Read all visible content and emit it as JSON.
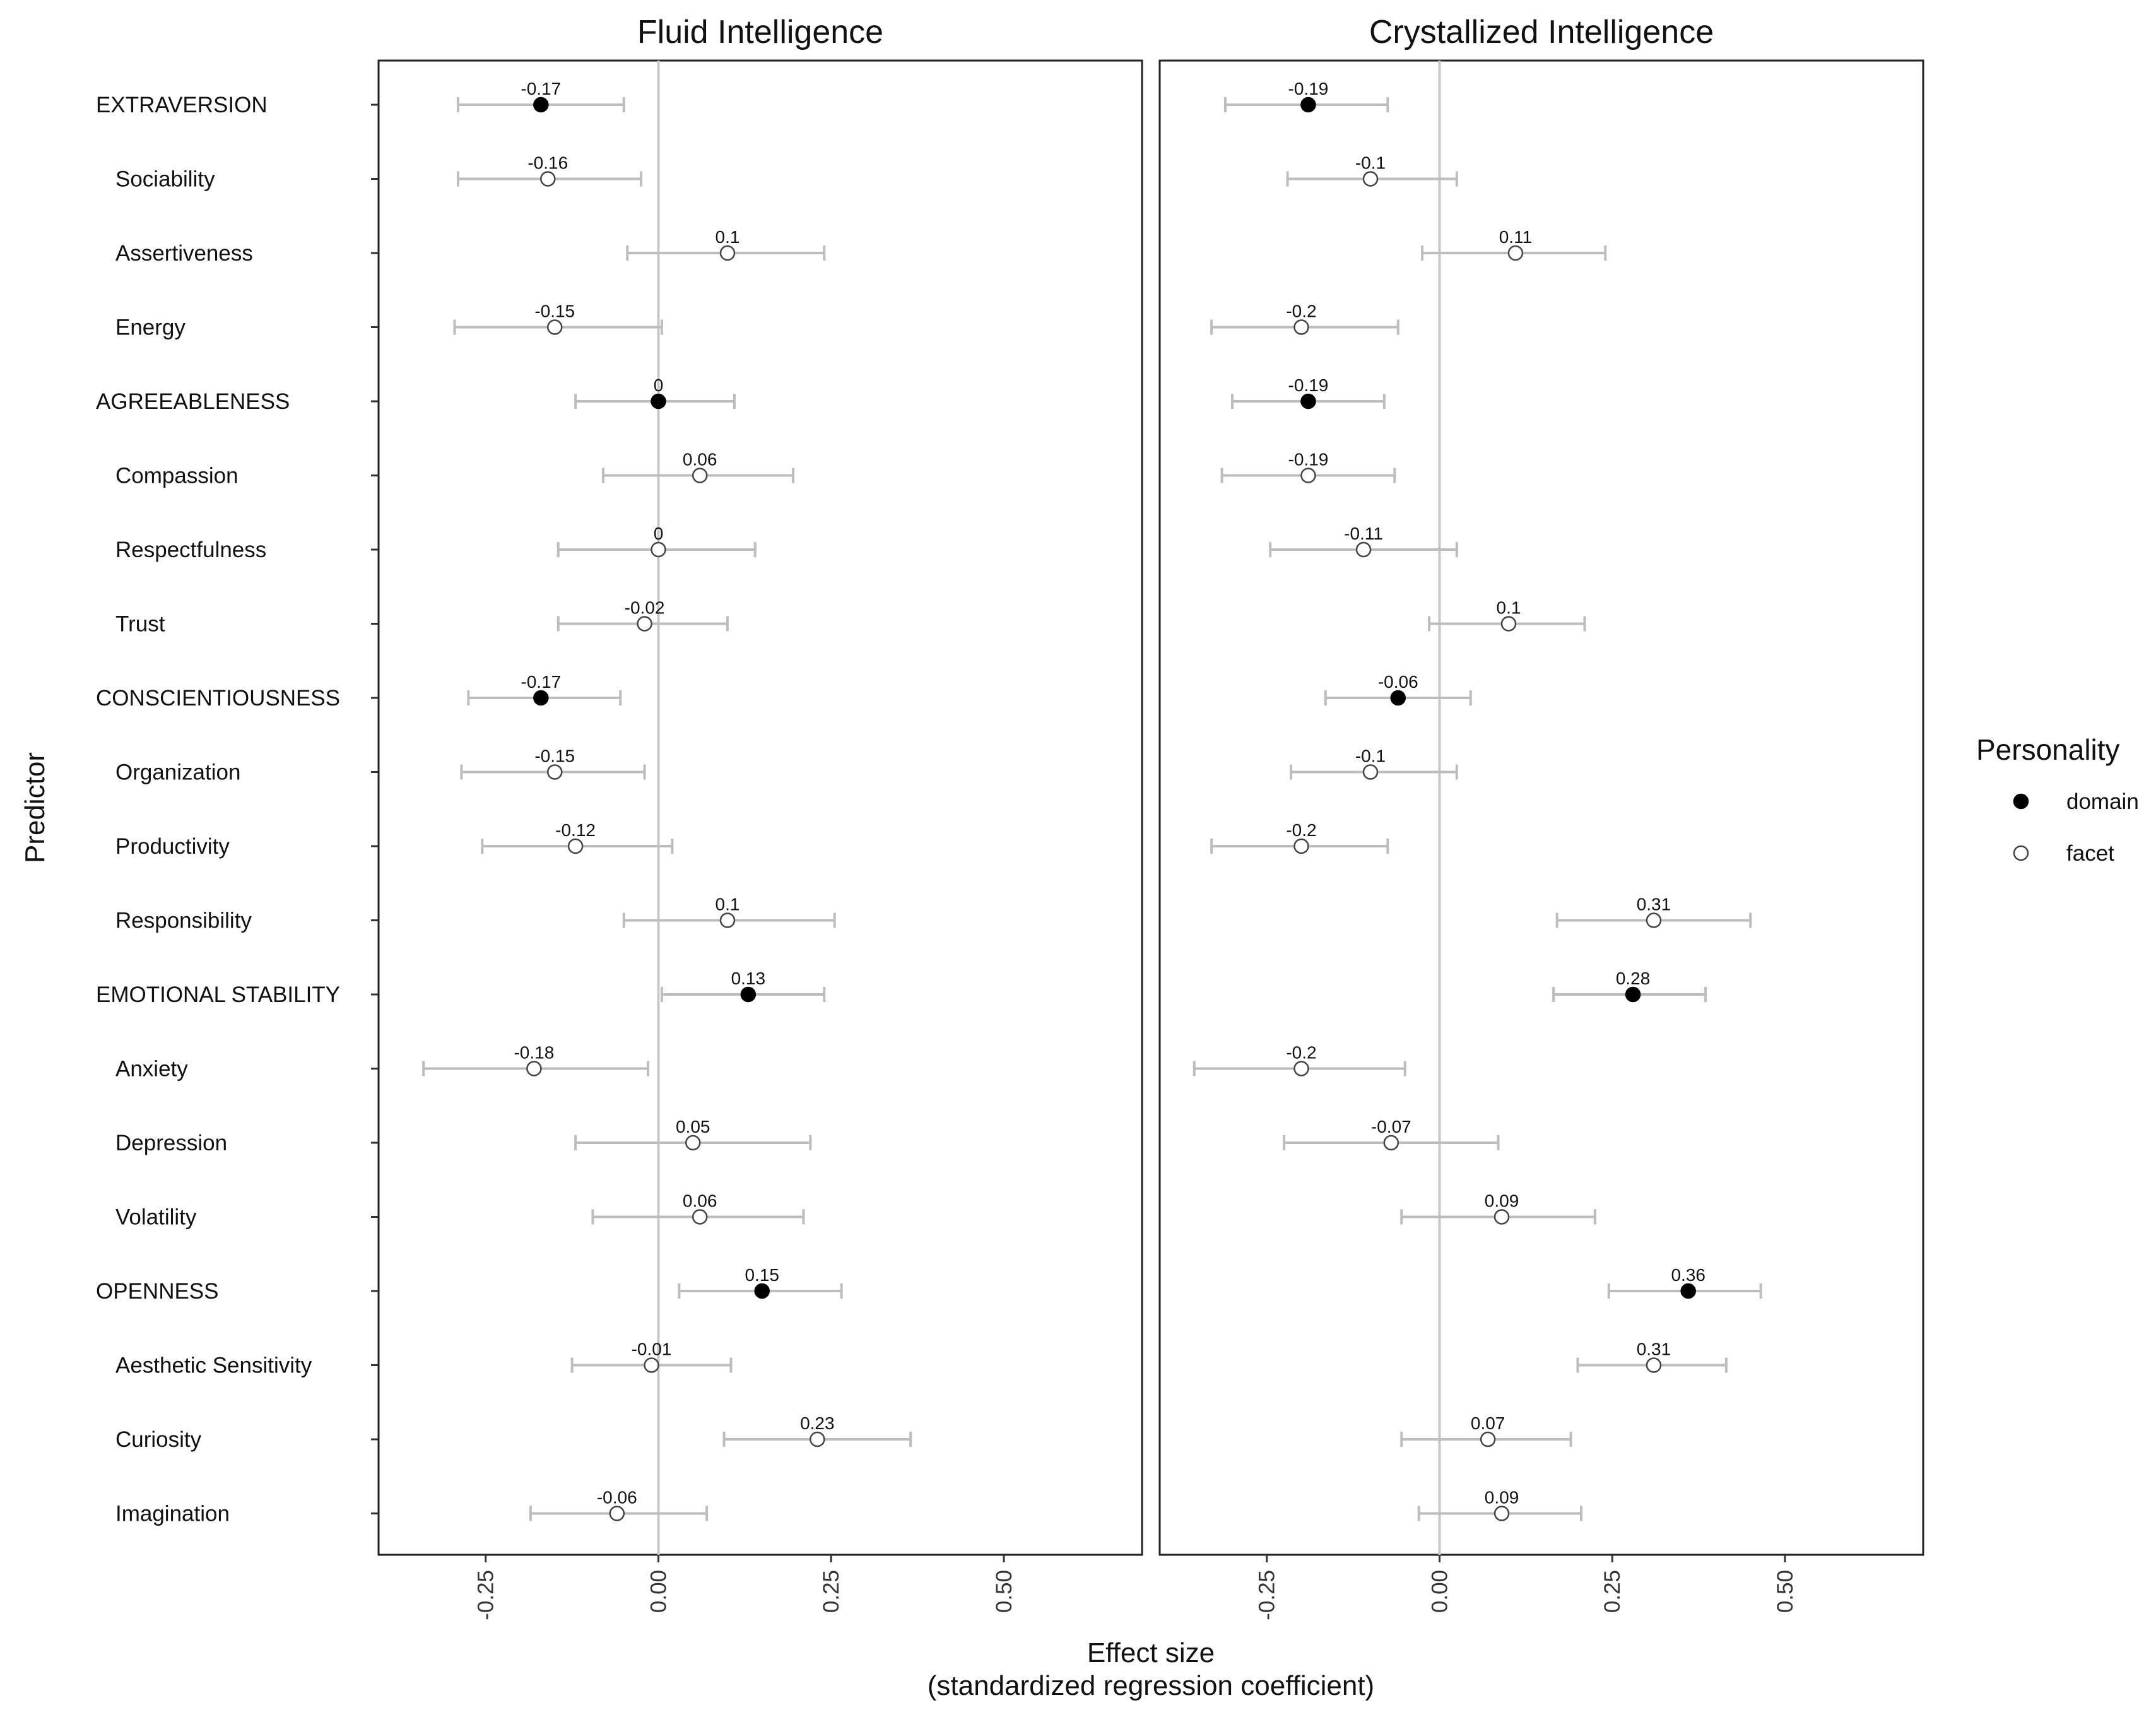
{
  "chart_data": {
    "type": "forest",
    "xlabel": "Effect size",
    "xlabel_sub": "(standardized regression coefficient)",
    "ylabel": "Predictor",
    "xlim": [
      -0.405,
      0.7
    ],
    "xticks": [
      -0.25,
      0.0,
      0.25,
      0.5
    ],
    "xtick_labels": [
      "-0.25",
      "0.00",
      "0.25",
      "0.50"
    ],
    "reference_line": 0,
    "grid": false,
    "legend": {
      "title": "Personality",
      "position": "right",
      "entries": [
        {
          "label": "domain",
          "marker": "filled-circle"
        },
        {
          "label": "facet",
          "marker": "open-circle"
        }
      ]
    },
    "predictors": [
      {
        "label": "EXTRAVERSION",
        "type": "domain"
      },
      {
        "label": "Sociability",
        "type": "facet"
      },
      {
        "label": "Assertiveness",
        "type": "facet"
      },
      {
        "label": "Energy",
        "type": "facet"
      },
      {
        "label": "AGREEABLENESS",
        "type": "domain"
      },
      {
        "label": "Compassion",
        "type": "facet"
      },
      {
        "label": "Respectfulness",
        "type": "facet"
      },
      {
        "label": "Trust",
        "type": "facet"
      },
      {
        "label": "CONSCIENTIOUSNESS",
        "type": "domain"
      },
      {
        "label": "Organization",
        "type": "facet"
      },
      {
        "label": "Productivity",
        "type": "facet"
      },
      {
        "label": "Responsibility",
        "type": "facet"
      },
      {
        "label": "EMOTIONAL STABILITY",
        "type": "domain"
      },
      {
        "label": "Anxiety",
        "type": "facet"
      },
      {
        "label": "Depression",
        "type": "facet"
      },
      {
        "label": "Volatility",
        "type": "facet"
      },
      {
        "label": "OPENNESS",
        "type": "domain"
      },
      {
        "label": "Aesthetic Sensitivity",
        "type": "facet"
      },
      {
        "label": "Curiosity",
        "type": "facet"
      },
      {
        "label": "Imagination",
        "type": "facet"
      }
    ],
    "panels": [
      {
        "title": "Fluid Intelligence",
        "estimates": [
          -0.17,
          -0.16,
          0.1,
          -0.15,
          0,
          0.06,
          0,
          -0.02,
          -0.17,
          -0.15,
          -0.12,
          0.1,
          0.13,
          -0.18,
          0.05,
          0.06,
          0.15,
          -0.01,
          0.23,
          -0.06
        ],
        "labels": [
          "-0.17",
          "-0.16",
          "0.1",
          "-0.15",
          "0",
          "0.06",
          "0",
          "-0.02",
          "-0.17",
          "-0.15",
          "-0.12",
          "0.1",
          "0.13",
          "-0.18",
          "0.05",
          "0.06",
          "0.15",
          "-0.01",
          "0.23",
          "-0.06"
        ],
        "ci_low": [
          -0.29,
          -0.29,
          -0.045,
          -0.295,
          -0.12,
          -0.08,
          -0.145,
          -0.145,
          -0.275,
          -0.285,
          -0.255,
          -0.05,
          0.005,
          -0.34,
          -0.12,
          -0.095,
          0.03,
          -0.125,
          0.095,
          -0.185
        ],
        "ci_high": [
          -0.05,
          -0.025,
          0.24,
          0.005,
          0.11,
          0.195,
          0.14,
          0.1,
          -0.055,
          -0.02,
          0.02,
          0.255,
          0.24,
          -0.015,
          0.22,
          0.21,
          0.265,
          0.105,
          0.365,
          0.07
        ]
      },
      {
        "title": "Crystallized Intelligence",
        "estimates": [
          -0.19,
          -0.1,
          0.11,
          -0.2,
          -0.19,
          -0.19,
          -0.11,
          0.1,
          -0.06,
          -0.1,
          -0.2,
          0.31,
          0.28,
          -0.2,
          -0.07,
          0.09,
          0.36,
          0.31,
          0.07,
          0.09
        ],
        "labels": [
          "-0.19",
          "-0.1",
          "0.11",
          "-0.2",
          "-0.19",
          "-0.19",
          "-0.11",
          "0.1",
          "-0.06",
          "-0.1",
          "-0.2",
          "0.31",
          "0.28",
          "-0.2",
          "-0.07",
          "0.09",
          "0.36",
          "0.31",
          "0.07",
          "0.09"
        ],
        "ci_low": [
          -0.31,
          -0.22,
          -0.025,
          -0.33,
          -0.3,
          -0.315,
          -0.245,
          -0.015,
          -0.165,
          -0.215,
          -0.33,
          0.17,
          0.165,
          -0.355,
          -0.225,
          -0.055,
          0.245,
          0.2,
          -0.055,
          -0.03
        ],
        "ci_high": [
          -0.075,
          0.025,
          0.24,
          -0.06,
          -0.08,
          -0.065,
          0.025,
          0.21,
          0.045,
          0.025,
          -0.075,
          0.45,
          0.385,
          -0.05,
          0.085,
          0.225,
          0.465,
          0.415,
          0.19,
          0.205
        ]
      }
    ]
  }
}
